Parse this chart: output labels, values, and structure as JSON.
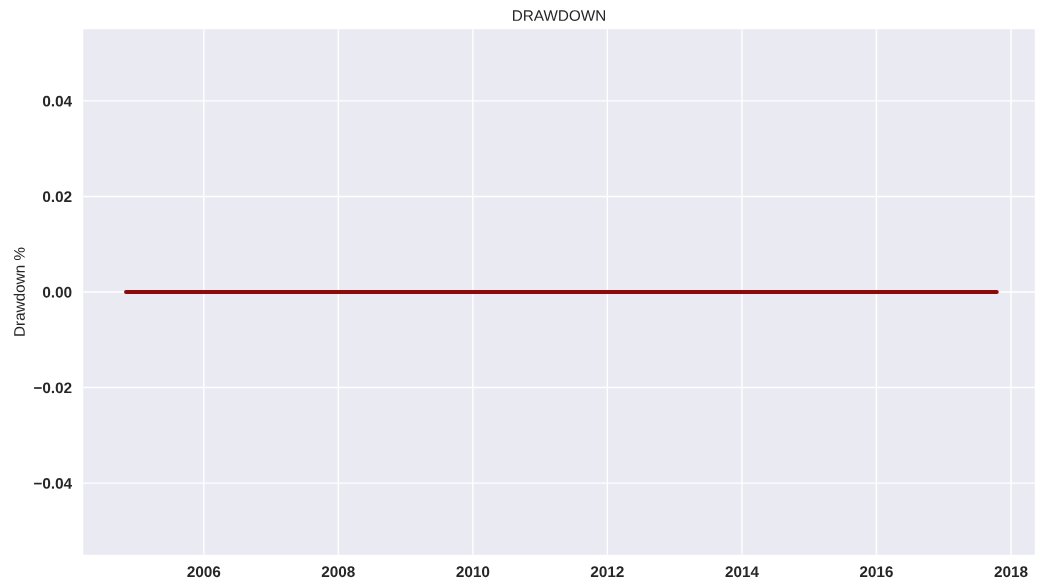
{
  "chart_data": {
    "type": "line",
    "title": "DRAWDOWN",
    "ylabel": "Drawdown %",
    "x": [
      "2004-11-05",
      "2017-10-15"
    ],
    "series": [
      {
        "color": "#8b0a0a",
        "values": [
          0,
          0
        ]
      }
    ],
    "xlim": [
      "2004-03-17",
      "2018-05-10"
    ],
    "xticks": [
      {
        "value": "2006-01-01",
        "label": "2006"
      },
      {
        "value": "2008-01-01",
        "label": "2008"
      },
      {
        "value": "2010-01-01",
        "label": "2010"
      },
      {
        "value": "2012-01-01",
        "label": "2012"
      },
      {
        "value": "2014-01-01",
        "label": "2014"
      },
      {
        "value": "2016-01-01",
        "label": "2016"
      },
      {
        "value": "2018-01-01",
        "label": "2018"
      }
    ],
    "ylim": [
      -0.055,
      0.055
    ],
    "yticks": [
      {
        "value": -0.04,
        "label": "−0.04"
      },
      {
        "value": -0.02,
        "label": "−0.02"
      },
      {
        "value": 0,
        "label": "0.00"
      },
      {
        "value": 0.02,
        "label": "0.02"
      },
      {
        "value": 0.04,
        "label": "0.04"
      }
    ],
    "grid": true,
    "marker": "none",
    "line_style": "solid"
  }
}
